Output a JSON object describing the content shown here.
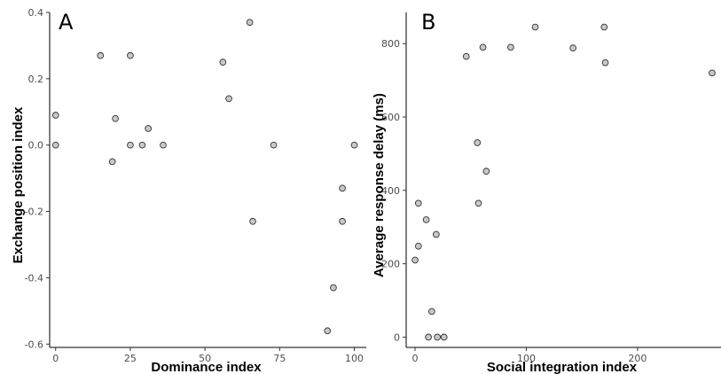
{
  "chart_data": [
    {
      "type": "scatter",
      "panel_label": "A",
      "xlabel": "Dominance index",
      "ylabel": "Exchange position index",
      "xlim": [
        -2,
        104
      ],
      "ylim": [
        -0.61,
        0.4
      ],
      "xticks": [
        0,
        25,
        50,
        75,
        100
      ],
      "xtick_labels": [
        "0",
        "25",
        "50",
        "75",
        "100"
      ],
      "yticks": [
        -0.6,
        -0.4,
        -0.2,
        0.0,
        0.2,
        0.4
      ],
      "ytick_labels": [
        "-0.6",
        "-0.4",
        "-0.2",
        "0.0",
        "0.2",
        "0.4"
      ],
      "grid": false,
      "marker_color": "#c8c8c8",
      "points": [
        {
          "x": 0,
          "y": 0.09
        },
        {
          "x": 0,
          "y": 0.0
        },
        {
          "x": 15,
          "y": 0.27
        },
        {
          "x": 19,
          "y": -0.05
        },
        {
          "x": 20,
          "y": 0.08
        },
        {
          "x": 25,
          "y": 0.27
        },
        {
          "x": 25,
          "y": 0.0
        },
        {
          "x": 29,
          "y": 0.0
        },
        {
          "x": 31,
          "y": 0.05
        },
        {
          "x": 36,
          "y": 0.0
        },
        {
          "x": 56,
          "y": 0.25
        },
        {
          "x": 58,
          "y": 0.14
        },
        {
          "x": 65,
          "y": 0.37
        },
        {
          "x": 66,
          "y": -0.23
        },
        {
          "x": 73,
          "y": 0.0
        },
        {
          "x": 91,
          "y": -0.56
        },
        {
          "x": 93,
          "y": -0.43
        },
        {
          "x": 96,
          "y": -0.13
        },
        {
          "x": 96,
          "y": -0.23
        },
        {
          "x": 100,
          "y": 0.0
        }
      ]
    },
    {
      "type": "scatter",
      "panel_label": "B",
      "xlabel": "Social integration index",
      "ylabel": "Average response delay (ms)",
      "xlim": [
        -8,
        275
      ],
      "ylim": [
        -28,
        885
      ],
      "xticks": [
        0,
        100,
        200
      ],
      "xtick_labels": [
        "0",
        "100",
        "200"
      ],
      "yticks": [
        0,
        200,
        400,
        600,
        800
      ],
      "ytick_labels": [
        "0",
        "200",
        "400",
        "600",
        "800"
      ],
      "grid": false,
      "marker_color": "#c8c8c8",
      "points": [
        {
          "x": 0,
          "y": 210
        },
        {
          "x": 3,
          "y": 365
        },
        {
          "x": 3,
          "y": 248
        },
        {
          "x": 10,
          "y": 320
        },
        {
          "x": 12,
          "y": 0
        },
        {
          "x": 15,
          "y": 70
        },
        {
          "x": 19,
          "y": 280
        },
        {
          "x": 20,
          "y": 0
        },
        {
          "x": 26,
          "y": 0
        },
        {
          "x": 46,
          "y": 765
        },
        {
          "x": 56,
          "y": 530
        },
        {
          "x": 57,
          "y": 365
        },
        {
          "x": 61,
          "y": 790
        },
        {
          "x": 64,
          "y": 452
        },
        {
          "x": 86,
          "y": 790
        },
        {
          "x": 108,
          "y": 845
        },
        {
          "x": 142,
          "y": 788
        },
        {
          "x": 170,
          "y": 845
        },
        {
          "x": 171,
          "y": 748
        },
        {
          "x": 267,
          "y": 720
        }
      ]
    }
  ]
}
